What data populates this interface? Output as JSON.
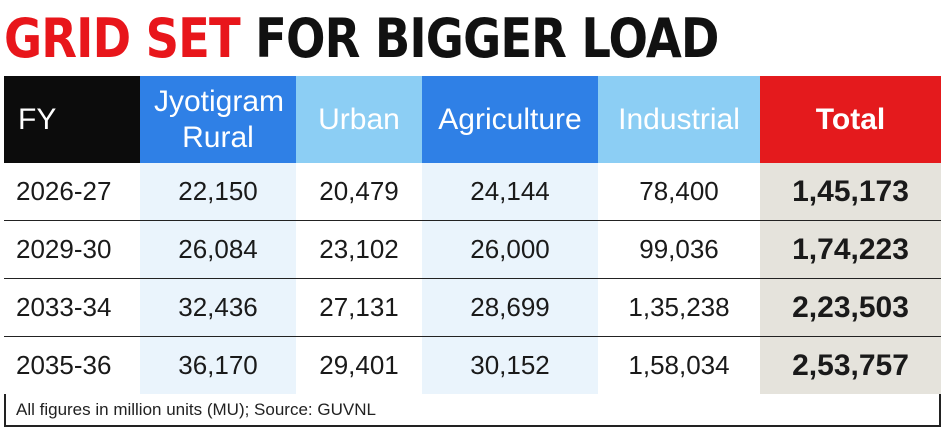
{
  "title": {
    "part1": "GRID SET",
    "part2": "FOR BIGGER LOAD"
  },
  "table": {
    "columns": [
      "FY",
      "Jyotigram Rural",
      "Urban",
      "Agriculture",
      "Industrial",
      "Total"
    ],
    "rows": [
      [
        "2026-27",
        "22,150",
        "20,479",
        "24,144",
        "78,400",
        "1,45,173"
      ],
      [
        "2029-30",
        "26,084",
        "23,102",
        "26,000",
        "99,036",
        "1,74,223"
      ],
      [
        "2033-34",
        "32,436",
        "27,131",
        "28,699",
        "1,35,238",
        "2,23,503"
      ],
      [
        "2035-36",
        "36,170",
        "29,401",
        "30,152",
        "1,58,034",
        "2,53,757"
      ]
    ]
  },
  "footnote": "All figures in million units (MU); Source: GUVNL",
  "colors": {
    "title_red": "#e8161b",
    "fy_header": "#0c0c0c",
    "blue_header": "#2f80e6",
    "light_blue_header": "#8ccef4",
    "total_header": "#e41a1d",
    "total_cells": "#e5e3dc"
  },
  "chart_data": {
    "type": "table",
    "title": "GRID SET FOR BIGGER LOAD",
    "unit": "million units (MU)",
    "categories": [
      "2026-27",
      "2029-30",
      "2033-34",
      "2035-36"
    ],
    "series": [
      {
        "name": "Jyotigram Rural",
        "values": [
          22150,
          26084,
          32436,
          36170
        ]
      },
      {
        "name": "Urban",
        "values": [
          20479,
          23102,
          27131,
          29401
        ]
      },
      {
        "name": "Agriculture",
        "values": [
          24144,
          26000,
          28699,
          30152
        ]
      },
      {
        "name": "Industrial",
        "values": [
          78400,
          99036,
          135238,
          158034
        ]
      },
      {
        "name": "Total",
        "values": [
          145173,
          174223,
          223503,
          253757
        ]
      }
    ]
  }
}
